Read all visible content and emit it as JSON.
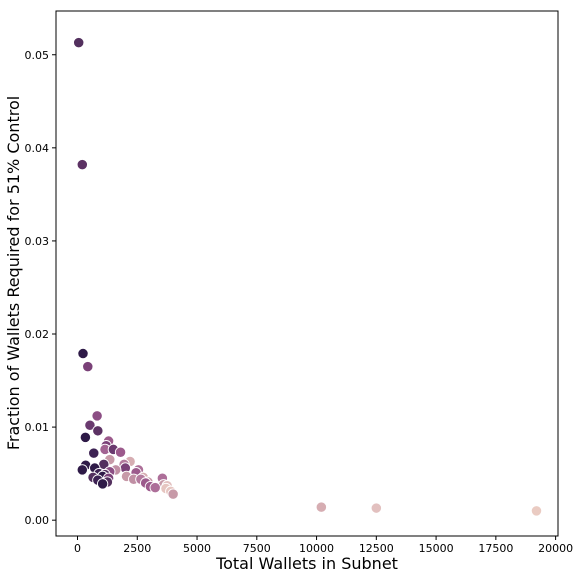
{
  "chart_data": {
    "type": "scatter",
    "title": "",
    "xlabel": "Total Wallets in Subnet",
    "ylabel": "Fraction of Wallets Required for 51% Control",
    "xlim": [
      -900,
      20100
    ],
    "ylim": [
      -0.0017,
      0.0547
    ],
    "xticks": [
      0,
      2500,
      5000,
      7500,
      10000,
      12500,
      15000,
      17500,
      20000
    ],
    "yticks": [
      0.0,
      0.01,
      0.02,
      0.03,
      0.04,
      0.05
    ],
    "xtick_labels": [
      "0",
      "2500",
      "5000",
      "7500",
      "10000",
      "12500",
      "15000",
      "17500",
      "20000"
    ],
    "ytick_labels": [
      "0.00",
      "0.01",
      "0.02",
      "0.03",
      "0.04",
      "0.05"
    ],
    "grid": false,
    "legend": "none",
    "color_scale": {
      "dark": "#2e1a47",
      "light": "#eacbc2"
    },
    "points": [
      {
        "x": 50,
        "y": 0.0513,
        "color": "#53305e"
      },
      {
        "x": 200,
        "y": 0.0382,
        "color": "#5c3264"
      },
      {
        "x": 230,
        "y": 0.0179,
        "color": "#2e1a47"
      },
      {
        "x": 430,
        "y": 0.0165,
        "color": "#7a4178"
      },
      {
        "x": 820,
        "y": 0.0112,
        "color": "#8c4e84"
      },
      {
        "x": 520,
        "y": 0.0102,
        "color": "#6a3a6f"
      },
      {
        "x": 330,
        "y": 0.0089,
        "color": "#2e1a47"
      },
      {
        "x": 850,
        "y": 0.0096,
        "color": "#5c3264"
      },
      {
        "x": 1300,
        "y": 0.0085,
        "color": "#9c5a8c"
      },
      {
        "x": 1200,
        "y": 0.008,
        "color": "#7a4178"
      },
      {
        "x": 1150,
        "y": 0.0076,
        "color": "#a26392"
      },
      {
        "x": 1500,
        "y": 0.0076,
        "color": "#6a3a6f"
      },
      {
        "x": 1800,
        "y": 0.0073,
        "color": "#9c5a8c"
      },
      {
        "x": 680,
        "y": 0.0072,
        "color": "#3d2253"
      },
      {
        "x": 1350,
        "y": 0.0065,
        "color": "#c79aa8"
      },
      {
        "x": 2200,
        "y": 0.0063,
        "color": "#d6adb2"
      },
      {
        "x": 1100,
        "y": 0.006,
        "color": "#53305e"
      },
      {
        "x": 1950,
        "y": 0.006,
        "color": "#b47b9e"
      },
      {
        "x": 340,
        "y": 0.0059,
        "color": "#2e1a47"
      },
      {
        "x": 720,
        "y": 0.0056,
        "color": "#2e1a47"
      },
      {
        "x": 2000,
        "y": 0.0056,
        "color": "#7a4178"
      },
      {
        "x": 1600,
        "y": 0.0054,
        "color": "#c08fa4"
      },
      {
        "x": 200,
        "y": 0.0054,
        "color": "#2e1a47"
      },
      {
        "x": 2550,
        "y": 0.0054,
        "color": "#ad6f99"
      },
      {
        "x": 1350,
        "y": 0.0052,
        "color": "#8c4e84"
      },
      {
        "x": 2450,
        "y": 0.0051,
        "color": "#9c5a8c"
      },
      {
        "x": 900,
        "y": 0.005,
        "color": "#3d2253"
      },
      {
        "x": 1150,
        "y": 0.0049,
        "color": "#53305e"
      },
      {
        "x": 1050,
        "y": 0.0047,
        "color": "#2e1a47"
      },
      {
        "x": 2050,
        "y": 0.0047,
        "color": "#c79aa8"
      },
      {
        "x": 650,
        "y": 0.0046,
        "color": "#53305e"
      },
      {
        "x": 1300,
        "y": 0.0045,
        "color": "#7a4178"
      },
      {
        "x": 2750,
        "y": 0.0046,
        "color": "#d6adb2"
      },
      {
        "x": 3550,
        "y": 0.0045,
        "color": "#ad6f99"
      },
      {
        "x": 2350,
        "y": 0.0044,
        "color": "#c08fa4"
      },
      {
        "x": 2650,
        "y": 0.0044,
        "color": "#b47b9e"
      },
      {
        "x": 850,
        "y": 0.0043,
        "color": "#3d2253"
      },
      {
        "x": 1250,
        "y": 0.0041,
        "color": "#53305e"
      },
      {
        "x": 2950,
        "y": 0.0041,
        "color": "#c79aa8"
      },
      {
        "x": 2850,
        "y": 0.004,
        "color": "#9c5a8c"
      },
      {
        "x": 1050,
        "y": 0.0039,
        "color": "#2e1a47"
      },
      {
        "x": 3600,
        "y": 0.0038,
        "color": "#c79aa8"
      },
      {
        "x": 3750,
        "y": 0.0037,
        "color": "#e2c0bf"
      },
      {
        "x": 3050,
        "y": 0.0036,
        "color": "#9c5a8c"
      },
      {
        "x": 3250,
        "y": 0.0035,
        "color": "#ad6f99"
      },
      {
        "x": 3700,
        "y": 0.0034,
        "color": "#e6c5c0"
      },
      {
        "x": 3900,
        "y": 0.0031,
        "color": "#e6c5c0"
      },
      {
        "x": 4000,
        "y": 0.0028,
        "color": "#c79aa8"
      },
      {
        "x": 10200,
        "y": 0.0014,
        "color": "#d6adb2"
      },
      {
        "x": 12500,
        "y": 0.0013,
        "color": "#e2c0bf"
      },
      {
        "x": 19200,
        "y": 0.001,
        "color": "#eacbc2"
      }
    ]
  }
}
